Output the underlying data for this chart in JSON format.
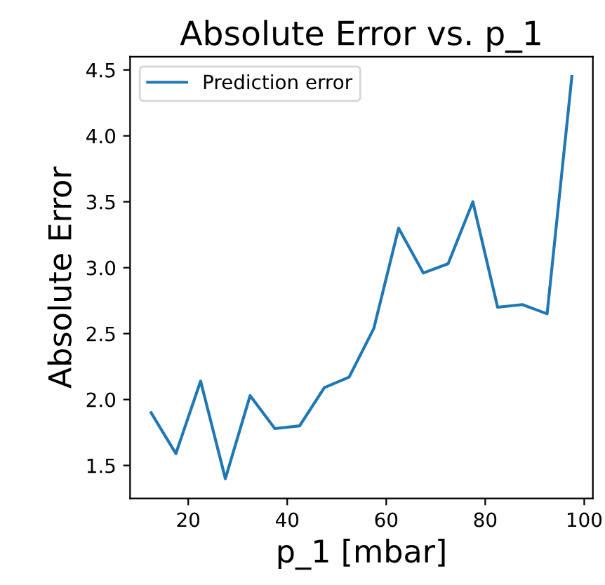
{
  "chart_data": {
    "type": "line",
    "title": "Absolute Error vs. p_1",
    "xlabel": "p_1 [mbar]",
    "ylabel": "Absolute Error",
    "x": [
      12.5,
      17.5,
      22.5,
      27.5,
      32.5,
      37.5,
      42.5,
      47.5,
      52.5,
      57.5,
      62.5,
      67.5,
      72.5,
      77.5,
      82.5,
      87.5,
      92.5,
      97.5
    ],
    "series": [
      {
        "name": "Prediction error",
        "color": "#1f77b4",
        "values": [
          1.9,
          1.59,
          2.14,
          1.4,
          2.03,
          1.78,
          1.8,
          2.09,
          2.17,
          2.54,
          3.3,
          2.96,
          3.03,
          3.5,
          2.7,
          2.72,
          2.65,
          4.45
        ]
      }
    ],
    "xlim": [
      8.25,
      101.75
    ],
    "ylim": [
      1.25,
      4.6
    ],
    "xticks": [
      20,
      40,
      60,
      80,
      100
    ],
    "yticks": [
      1.5,
      {
        "value": 2,
        "label": "2.0"
      },
      2.5,
      {
        "value": 3,
        "label": "3.0"
      },
      3.5,
      {
        "value": 4,
        "label": "4.0"
      },
      4.5
    ],
    "legend": "top left",
    "grid": false
  }
}
